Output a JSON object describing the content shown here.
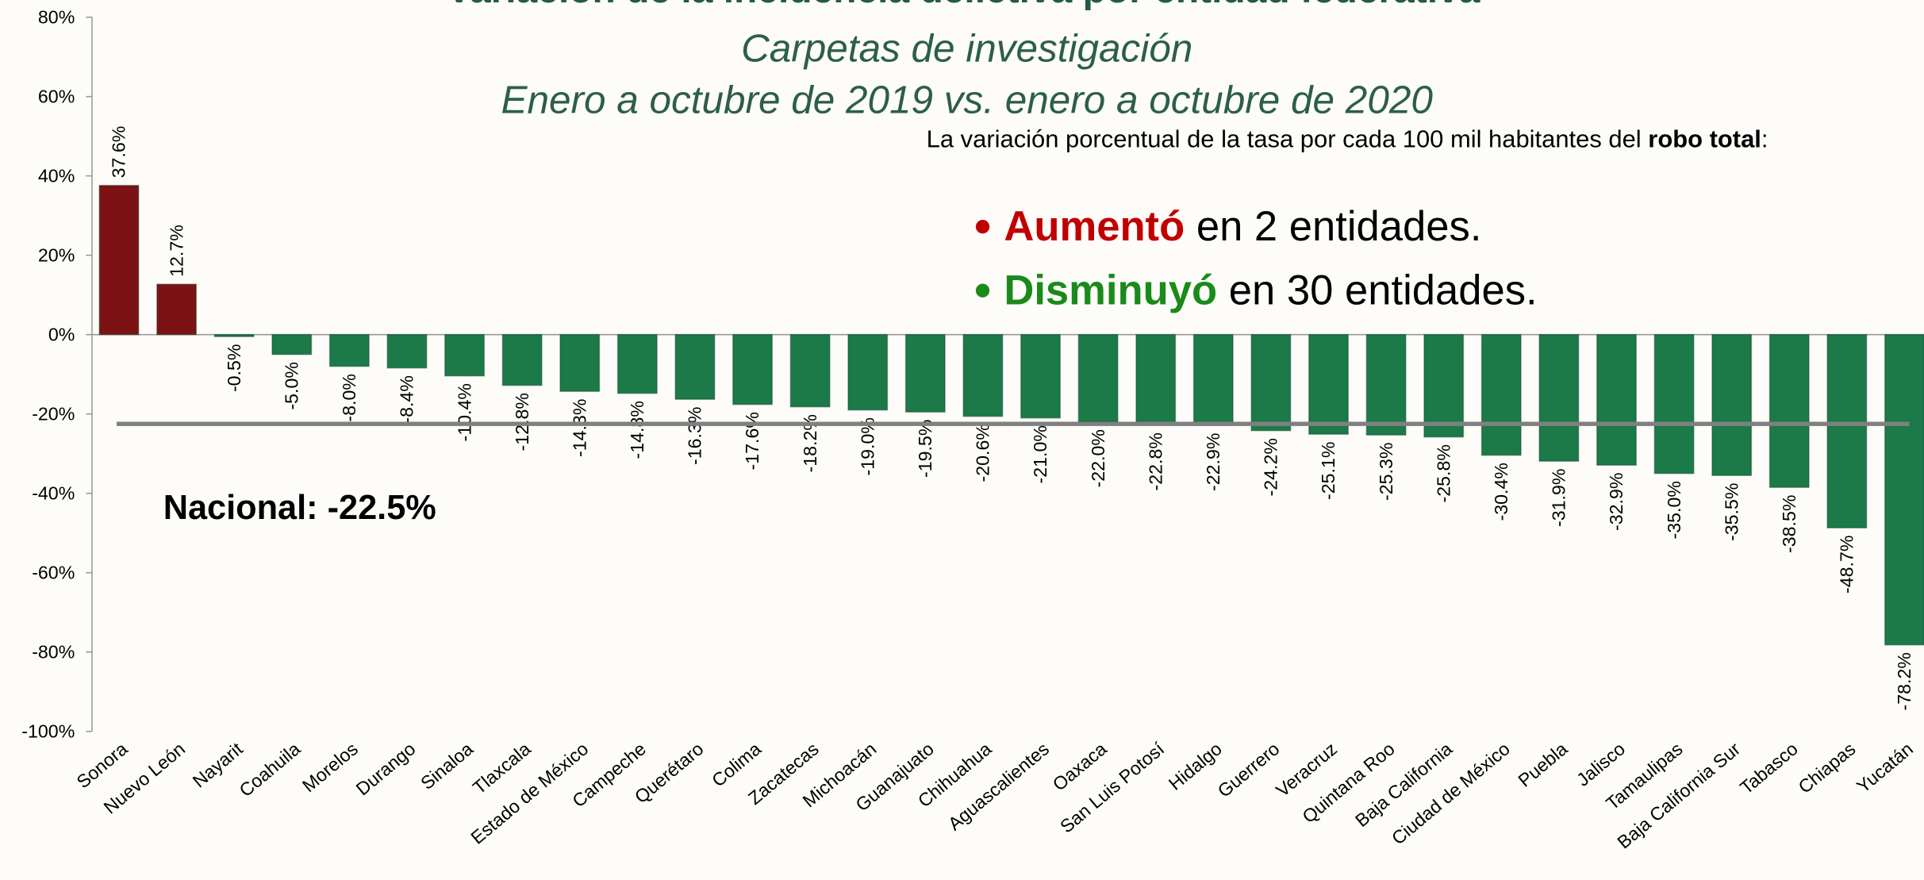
{
  "chart_data": {
    "type": "bar",
    "title": "Variación de la incidencia delictiva por entidad federativa",
    "subtitle": [
      "Carpetas de investigación",
      "Enero a octubre de 2019 vs. enero a octubre de 2020"
    ],
    "categories": [
      "Sonora",
      "Nuevo León",
      "Nayarit",
      "Coahuila",
      "Morelos",
      "Durango",
      "Sinaloa",
      "Tlaxcala",
      "Estado de México",
      "Campeche",
      "Querétaro",
      "Colima",
      "Zacatecas",
      "Michoacán",
      "Guanajuato",
      "Chihuahua",
      "Aguascalientes",
      "Oaxaca",
      "San Luis Potosí",
      "Hidalgo",
      "Guerrero",
      "Veracruz",
      "Quintana Roo",
      "Baja California",
      "Ciudad de México",
      "Puebla",
      "Jalisco",
      "Tamaulipas",
      "Baja California Sur",
      "Tabasco",
      "Chiapas",
      "Yucatán"
    ],
    "values": [
      37.6,
      12.7,
      -0.5,
      -5.0,
      -8.0,
      -8.4,
      -10.4,
      -12.8,
      -14.3,
      -14.8,
      -16.3,
      -17.6,
      -18.2,
      -19.0,
      -19.5,
      -20.6,
      -21.0,
      -22.0,
      -22.8,
      -22.9,
      -24.2,
      -25.1,
      -25.3,
      -25.8,
      -30.4,
      -31.9,
      -32.9,
      -35.0,
      -35.5,
      -38.5,
      -48.7,
      -78.2
    ],
    "value_labels": [
      "37.6%",
      "12.7%",
      "-0.5%",
      "-5.0%",
      "-8.0%",
      "-8.4%",
      "-10.4%",
      "-12.8%",
      "-14.3%",
      "-14.8%",
      "-16.3%",
      "-17.6%",
      "-18.2%",
      "-19.0%",
      "-19.5%",
      "-20.6%",
      "-21.0%",
      "-22.0%",
      "-22.8%",
      "-22.9%",
      "-24.2%",
      "-25.1%",
      "-25.3%",
      "-25.8%",
      "-30.4%",
      "-31.9%",
      "-32.9%",
      "-35.0%",
      "-35.5%",
      "-38.5%",
      "-48.7%",
      "-78.2%"
    ],
    "positive_color": "#7c1214",
    "negative_color": "#1b7a48",
    "ylim": [
      -100,
      80
    ],
    "yticks": [
      {
        "value": -100,
        "label": "-100%"
      },
      {
        "value": -80,
        "label": "-80%"
      },
      {
        "value": -60,
        "label": "-60%"
      },
      {
        "value": -40,
        "label": "-40%"
      },
      {
        "value": -20,
        "label": "-20%"
      },
      {
        "value": 0,
        "label": "0%"
      },
      {
        "value": 20,
        "label": "20%"
      },
      {
        "value": 40,
        "label": "40%"
      },
      {
        "value": 60,
        "label": "60%"
      },
      {
        "value": 80,
        "label": "80%"
      }
    ],
    "reference_line": {
      "value": -22.5,
      "label": "Nacional: -22.5%",
      "color": "#808080"
    },
    "note": {
      "text": "La variación porcentual de la tasa por cada 100 mil habitantes del",
      "bold": "robo total",
      "end": ":"
    },
    "bullets": [
      {
        "highlight": "Aumentó",
        "text": "en 2 entidades.",
        "color": "#c00000"
      },
      {
        "highlight": "Disminuyó",
        "text": "en 30 entidades.",
        "color": "#1a8a1a"
      }
    ]
  }
}
